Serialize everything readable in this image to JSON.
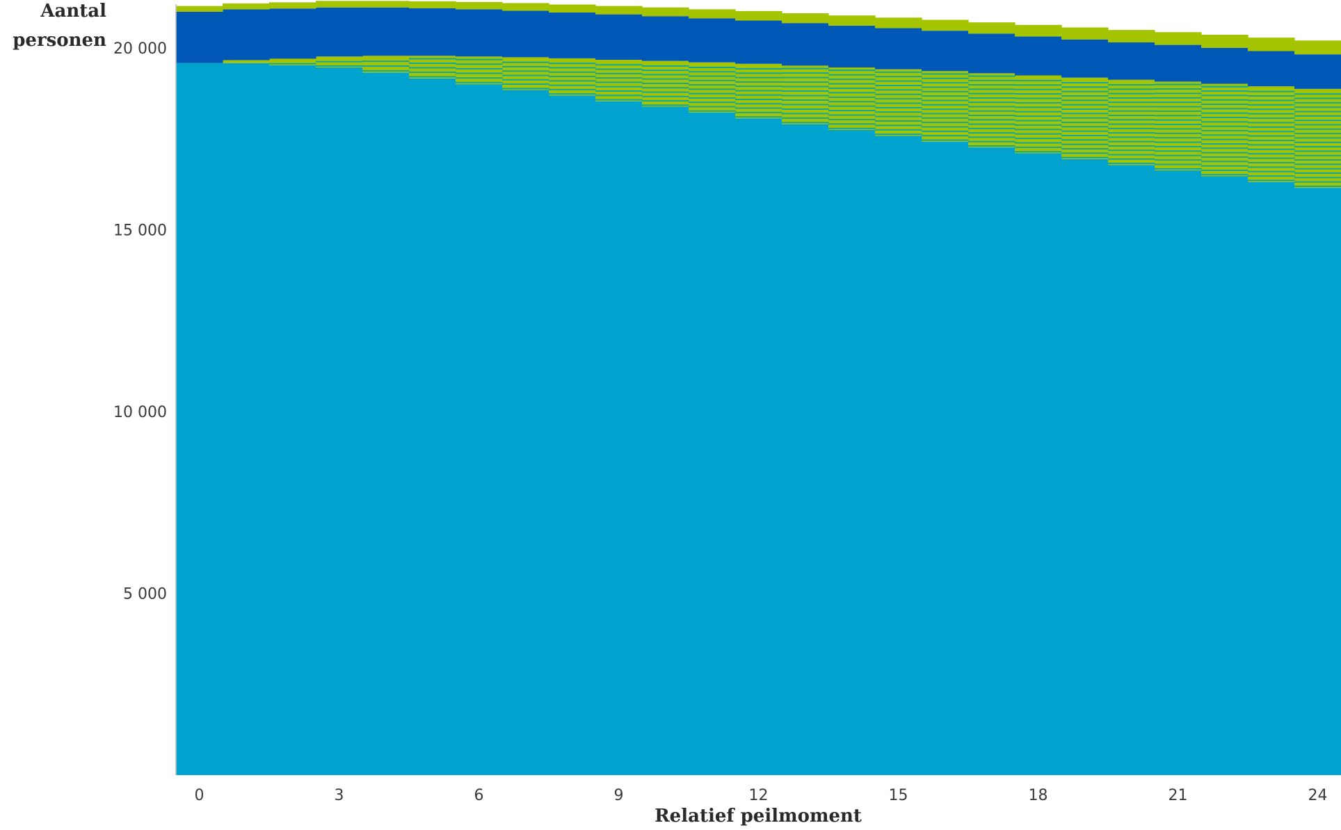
{
  "chart_data": {
    "type": "area",
    "title": "",
    "ylabel_line1": "Aantal",
    "ylabel_line2": "personen",
    "xlabel": "Relatief peilmoment",
    "xlim": [
      -0.5,
      24.5
    ],
    "ylim": [
      0,
      21200
    ],
    "x_ticks": [
      0,
      3,
      6,
      9,
      12,
      15,
      18,
      21,
      24
    ],
    "x_tick_labels": [
      "0",
      "3",
      "6",
      "9",
      "12",
      "15",
      "18",
      "21",
      "24"
    ],
    "y_ticks": [
      5000,
      10000,
      15000,
      20000
    ],
    "y_tick_labels": [
      "5 000",
      "10 000",
      "15 000",
      "20 000"
    ],
    "grid": false,
    "legend": "none",
    "colors": {
      "light_blue": "#00a2ce",
      "dark_blue": "#0058b6",
      "green": "#a5c400",
      "teal": "#0fa8a0"
    },
    "x": [
      0,
      1,
      2,
      3,
      4,
      5,
      6,
      7,
      8,
      9,
      10,
      11,
      12,
      13,
      14,
      15,
      16,
      17,
      18,
      19,
      20,
      21,
      22,
      23,
      24
    ],
    "series": [
      {
        "color_key": "light_blue",
        "values": [
          19580,
          19580,
          19520,
          19460,
          19320,
          19160,
          19000,
          18840,
          18690,
          18530,
          18380,
          18220,
          18060,
          17900,
          17740,
          17580,
          17420,
          17260,
          17100,
          16940,
          16780,
          16630,
          16470,
          16310,
          16150
        ]
      },
      {
        "color_key": "green",
        "values": [
          0,
          80,
          180,
          300,
          460,
          620,
          760,
          900,
          1020,
          1140,
          1260,
          1380,
          1500,
          1610,
          1720,
          1830,
          1940,
          2040,
          2140,
          2240,
          2340,
          2440,
          2540,
          2630,
          2720
        ]
      },
      {
        "color_key": "dark_blue",
        "values": [
          1410,
          1400,
          1380,
          1350,
          1330,
          1310,
          1300,
          1280,
          1260,
          1250,
          1230,
          1210,
          1190,
          1170,
          1150,
          1130,
          1110,
          1090,
          1070,
          1050,
          1030,
          1010,
          990,
          970,
          950
        ]
      },
      {
        "color_key": "green",
        "values": [
          160,
          160,
          170,
          180,
          180,
          190,
          200,
          210,
          220,
          230,
          240,
          250,
          260,
          270,
          280,
          290,
          300,
          310,
          320,
          330,
          340,
          350,
          360,
          370,
          380
        ]
      }
    ]
  }
}
